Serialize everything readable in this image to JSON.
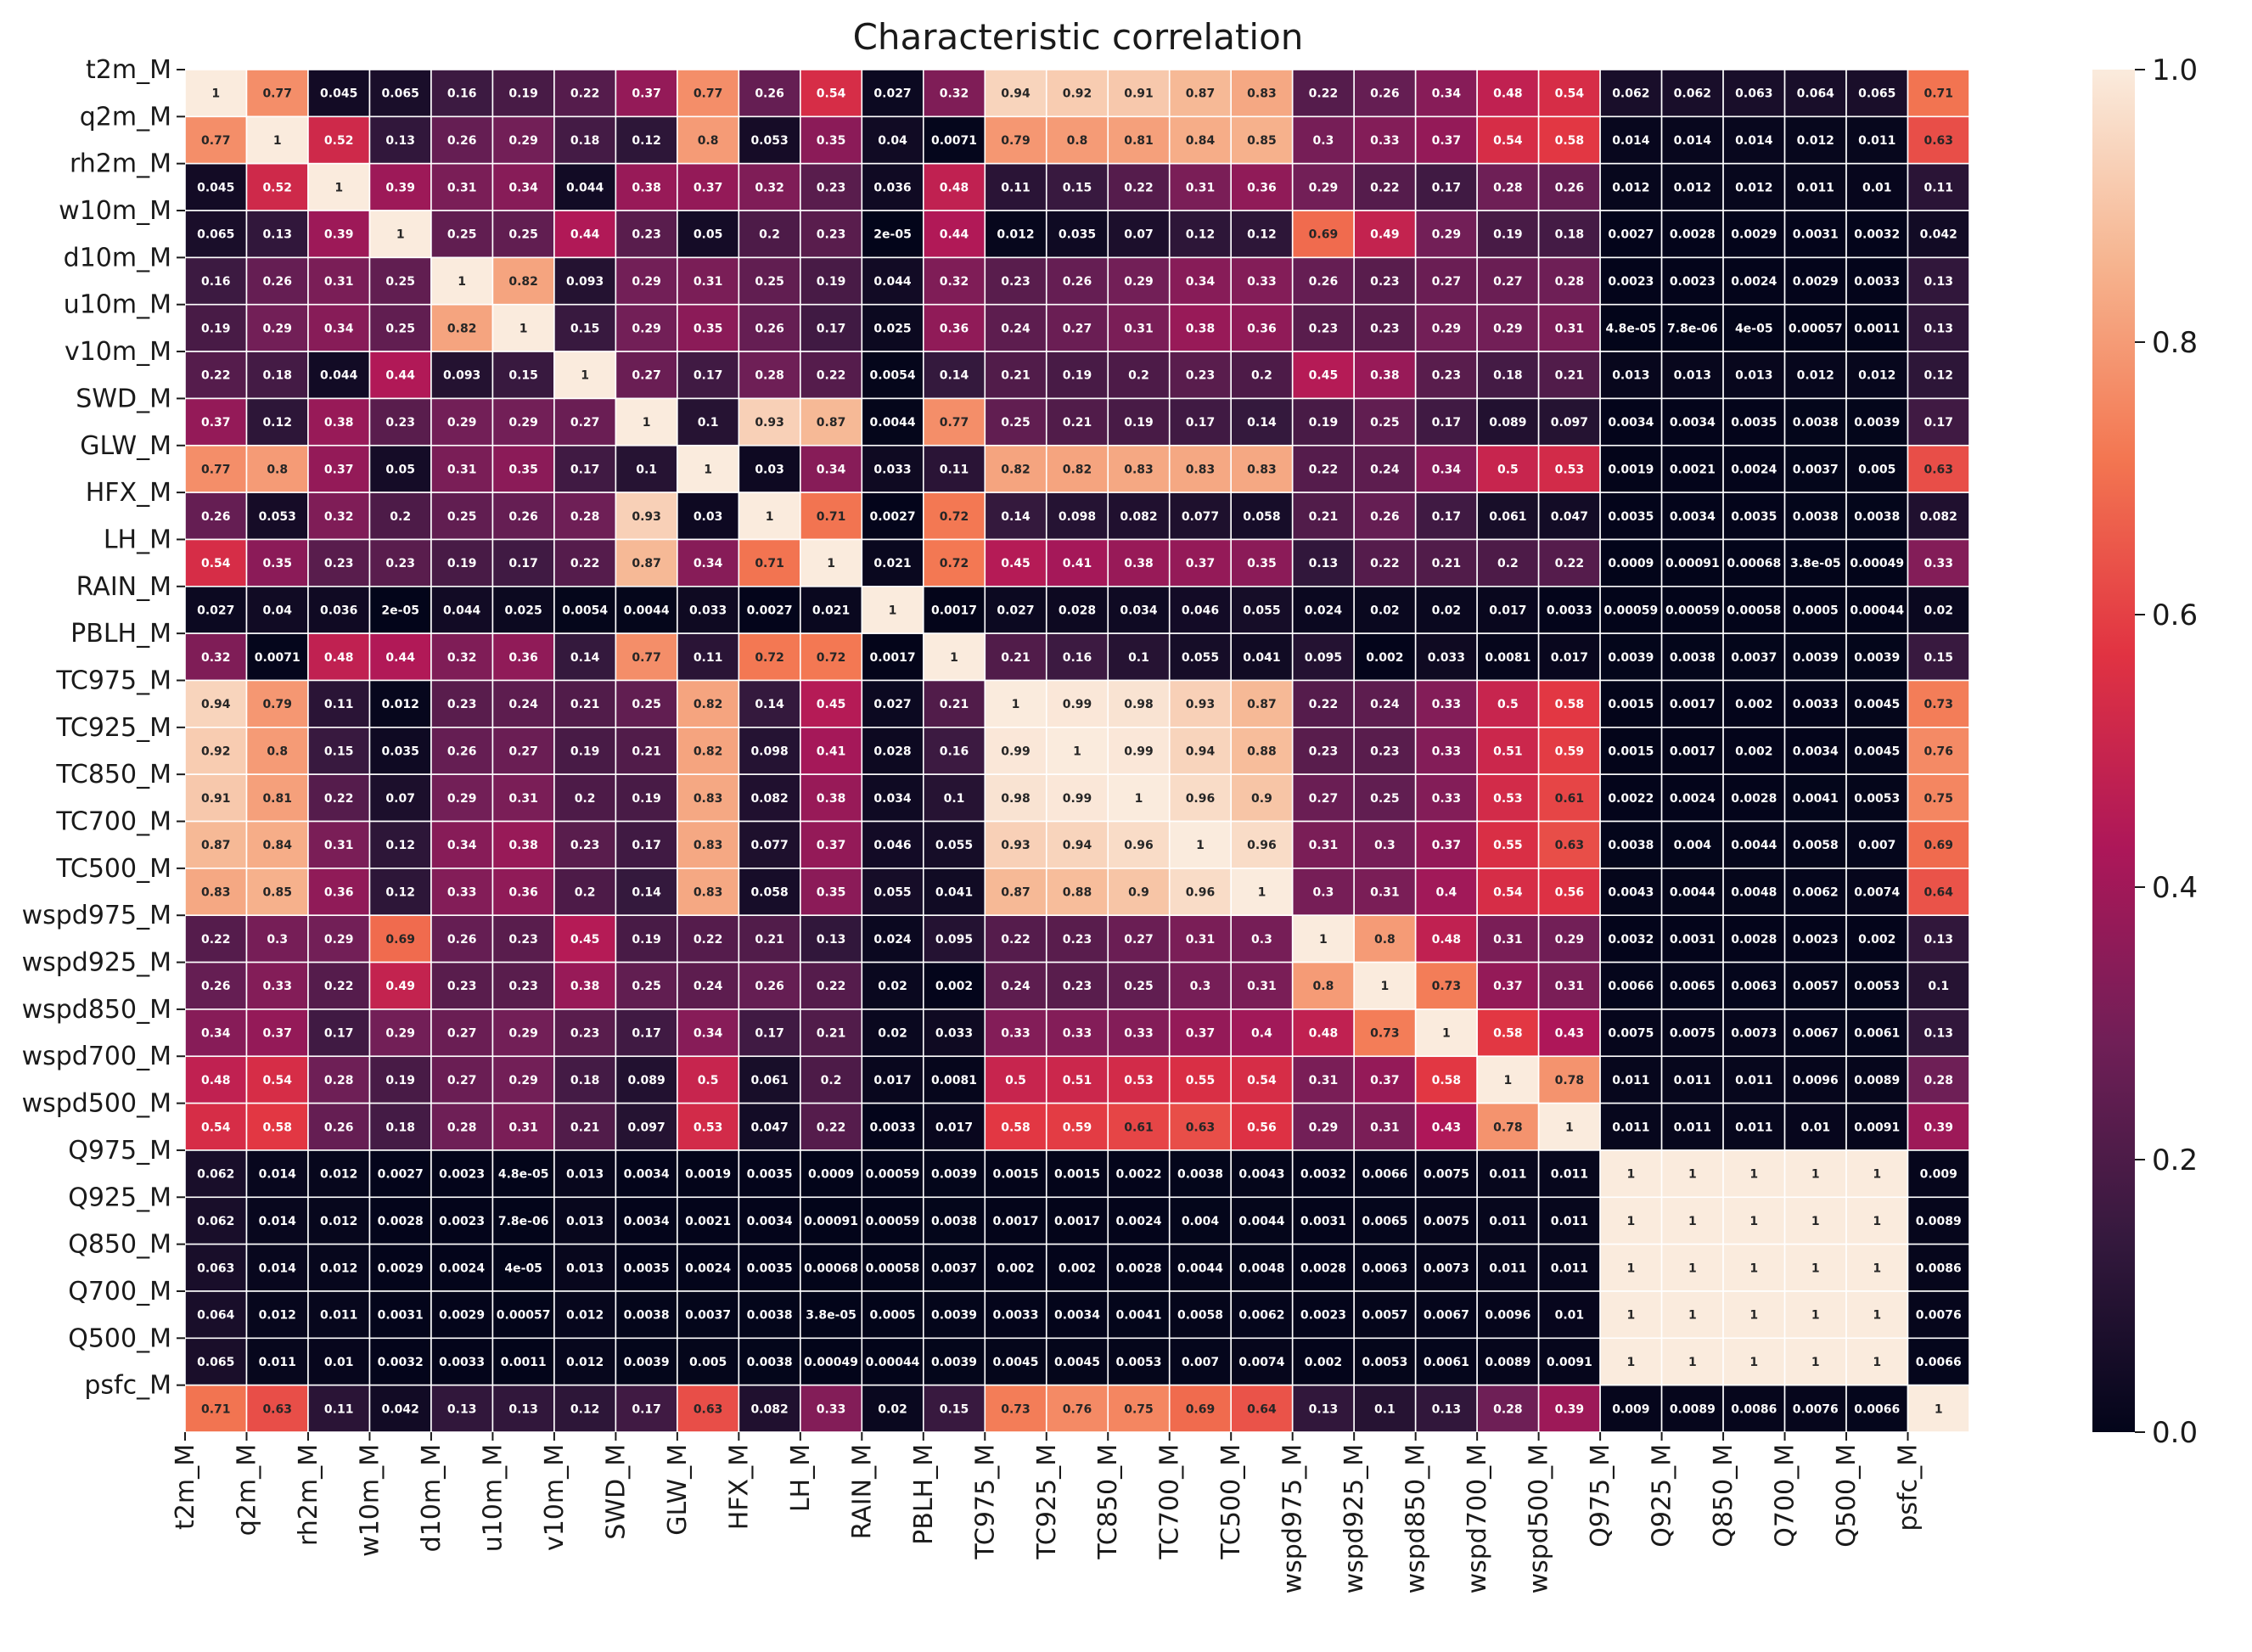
{
  "chart_data": {
    "type": "heatmap",
    "title": "Characteristic correlation",
    "labels": [
      "t2m_M",
      "q2m_M",
      "rh2m_M",
      "w10m_M",
      "d10m_M",
      "u10m_M",
      "v10m_M",
      "SWD_M",
      "GLW_M",
      "HFX_M",
      "LH_M",
      "RAIN_M",
      "PBLH_M",
      "TC975_M",
      "TC925_M",
      "TC850_M",
      "TC700_M",
      "TC500_M",
      "wspd975_M",
      "wspd925_M",
      "wspd850_M",
      "wspd700_M",
      "wspd500_M",
      "Q975_M",
      "Q925_M",
      "Q850_M",
      "Q700_M",
      "Q500_M",
      "psfc_M"
    ],
    "cell_text": [
      [
        "1",
        "0.77",
        "0.045",
        "0.065",
        "0.16",
        "0.19",
        "0.22",
        "0.37",
        "0.77",
        "0.26",
        "0.54",
        "0.027",
        "0.32",
        "0.94",
        "0.92",
        "0.91",
        "0.87",
        "0.83",
        "0.22",
        "0.26",
        "0.34",
        "0.48",
        "0.54",
        "0.062",
        "0.062",
        "0.063",
        "0.064",
        "0.065",
        "0.71"
      ],
      [
        "0.77",
        "1",
        "0.52",
        "0.13",
        "0.26",
        "0.29",
        "0.18",
        "0.12",
        "0.8",
        "0.053",
        "0.35",
        "0.04",
        "0.0071",
        "0.79",
        "0.8",
        "0.81",
        "0.84",
        "0.85",
        "0.3",
        "0.33",
        "0.37",
        "0.54",
        "0.58",
        "0.014",
        "0.014",
        "0.014",
        "0.012",
        "0.011",
        "0.63"
      ],
      [
        "0.045",
        "0.52",
        "1",
        "0.39",
        "0.31",
        "0.34",
        "0.044",
        "0.38",
        "0.37",
        "0.32",
        "0.23",
        "0.036",
        "0.48",
        "0.11",
        "0.15",
        "0.22",
        "0.31",
        "0.36",
        "0.29",
        "0.22",
        "0.17",
        "0.28",
        "0.26",
        "0.012",
        "0.012",
        "0.012",
        "0.011",
        "0.01",
        "0.11"
      ],
      [
        "0.065",
        "0.13",
        "0.39",
        "1",
        "0.25",
        "0.25",
        "0.44",
        "0.23",
        "0.05",
        "0.2",
        "0.23",
        "2e-05",
        "0.44",
        "0.012",
        "0.035",
        "0.07",
        "0.12",
        "0.12",
        "0.69",
        "0.49",
        "0.29",
        "0.19",
        "0.18",
        "0.0027",
        "0.0028",
        "0.0029",
        "0.0031",
        "0.0032",
        "0.042"
      ],
      [
        "0.16",
        "0.26",
        "0.31",
        "0.25",
        "1",
        "0.82",
        "0.093",
        "0.29",
        "0.31",
        "0.25",
        "0.19",
        "0.044",
        "0.32",
        "0.23",
        "0.26",
        "0.29",
        "0.34",
        "0.33",
        "0.26",
        "0.23",
        "0.27",
        "0.27",
        "0.28",
        "0.0023",
        "0.0023",
        "0.0024",
        "0.0029",
        "0.0033",
        "0.13"
      ],
      [
        "0.19",
        "0.29",
        "0.34",
        "0.25",
        "0.82",
        "1",
        "0.15",
        "0.29",
        "0.35",
        "0.26",
        "0.17",
        "0.025",
        "0.36",
        "0.24",
        "0.27",
        "0.31",
        "0.38",
        "0.36",
        "0.23",
        "0.23",
        "0.29",
        "0.29",
        "0.31",
        "4.8e-05",
        "7.8e-06",
        "4e-05",
        "0.00057",
        "0.0011",
        "0.13"
      ],
      [
        "0.22",
        "0.18",
        "0.044",
        "0.44",
        "0.093",
        "0.15",
        "1",
        "0.27",
        "0.17",
        "0.28",
        "0.22",
        "0.0054",
        "0.14",
        "0.21",
        "0.19",
        "0.2",
        "0.23",
        "0.2",
        "0.45",
        "0.38",
        "0.23",
        "0.18",
        "0.21",
        "0.013",
        "0.013",
        "0.013",
        "0.012",
        "0.012",
        "0.12"
      ],
      [
        "0.37",
        "0.12",
        "0.38",
        "0.23",
        "0.29",
        "0.29",
        "0.27",
        "1",
        "0.1",
        "0.93",
        "0.87",
        "0.0044",
        "0.77",
        "0.25",
        "0.21",
        "0.19",
        "0.17",
        "0.14",
        "0.19",
        "0.25",
        "0.17",
        "0.089",
        "0.097",
        "0.0034",
        "0.0034",
        "0.0035",
        "0.0038",
        "0.0039",
        "0.17"
      ],
      [
        "0.77",
        "0.8",
        "0.37",
        "0.05",
        "0.31",
        "0.35",
        "0.17",
        "0.1",
        "1",
        "0.03",
        "0.34",
        "0.033",
        "0.11",
        "0.82",
        "0.82",
        "0.83",
        "0.83",
        "0.83",
        "0.22",
        "0.24",
        "0.34",
        "0.5",
        "0.53",
        "0.0019",
        "0.0021",
        "0.0024",
        "0.0037",
        "0.005",
        "0.63"
      ],
      [
        "0.26",
        "0.053",
        "0.32",
        "0.2",
        "0.25",
        "0.26",
        "0.28",
        "0.93",
        "0.03",
        "1",
        "0.71",
        "0.0027",
        "0.72",
        "0.14",
        "0.098",
        "0.082",
        "0.077",
        "0.058",
        "0.21",
        "0.26",
        "0.17",
        "0.061",
        "0.047",
        "0.0035",
        "0.0034",
        "0.0035",
        "0.0038",
        "0.0038",
        "0.082"
      ],
      [
        "0.54",
        "0.35",
        "0.23",
        "0.23",
        "0.19",
        "0.17",
        "0.22",
        "0.87",
        "0.34",
        "0.71",
        "1",
        "0.021",
        "0.72",
        "0.45",
        "0.41",
        "0.38",
        "0.37",
        "0.35",
        "0.13",
        "0.22",
        "0.21",
        "0.2",
        "0.22",
        "0.0009",
        "0.00091",
        "0.00068",
        "3.8e-05",
        "0.00049",
        "0.33"
      ],
      [
        "0.027",
        "0.04",
        "0.036",
        "2e-05",
        "0.044",
        "0.025",
        "0.0054",
        "0.0044",
        "0.033",
        "0.0027",
        "0.021",
        "1",
        "0.0017",
        "0.027",
        "0.028",
        "0.034",
        "0.046",
        "0.055",
        "0.024",
        "0.02",
        "0.02",
        "0.017",
        "0.0033",
        "0.00059",
        "0.00059",
        "0.00058",
        "0.0005",
        "0.00044",
        "0.02"
      ],
      [
        "0.32",
        "0.0071",
        "0.48",
        "0.44",
        "0.32",
        "0.36",
        "0.14",
        "0.77",
        "0.11",
        "0.72",
        "0.72",
        "0.0017",
        "1",
        "0.21",
        "0.16",
        "0.1",
        "0.055",
        "0.041",
        "0.095",
        "0.002",
        "0.033",
        "0.0081",
        "0.017",
        "0.0039",
        "0.0038",
        "0.0037",
        "0.0039",
        "0.0039",
        "0.15"
      ],
      [
        "0.94",
        "0.79",
        "0.11",
        "0.012",
        "0.23",
        "0.24",
        "0.21",
        "0.25",
        "0.82",
        "0.14",
        "0.45",
        "0.027",
        "0.21",
        "1",
        "0.99",
        "0.98",
        "0.93",
        "0.87",
        "0.22",
        "0.24",
        "0.33",
        "0.5",
        "0.58",
        "0.0015",
        "0.0017",
        "0.002",
        "0.0033",
        "0.0045",
        "0.73"
      ],
      [
        "0.92",
        "0.8",
        "0.15",
        "0.035",
        "0.26",
        "0.27",
        "0.19",
        "0.21",
        "0.82",
        "0.098",
        "0.41",
        "0.028",
        "0.16",
        "0.99",
        "1",
        "0.99",
        "0.94",
        "0.88",
        "0.23",
        "0.23",
        "0.33",
        "0.51",
        "0.59",
        "0.0015",
        "0.0017",
        "0.002",
        "0.0034",
        "0.0045",
        "0.76"
      ],
      [
        "0.91",
        "0.81",
        "0.22",
        "0.07",
        "0.29",
        "0.31",
        "0.2",
        "0.19",
        "0.83",
        "0.082",
        "0.38",
        "0.034",
        "0.1",
        "0.98",
        "0.99",
        "1",
        "0.96",
        "0.9",
        "0.27",
        "0.25",
        "0.33",
        "0.53",
        "0.61",
        "0.0022",
        "0.0024",
        "0.0028",
        "0.0041",
        "0.0053",
        "0.75"
      ],
      [
        "0.87",
        "0.84",
        "0.31",
        "0.12",
        "0.34",
        "0.38",
        "0.23",
        "0.17",
        "0.83",
        "0.077",
        "0.37",
        "0.046",
        "0.055",
        "0.93",
        "0.94",
        "0.96",
        "1",
        "0.96",
        "0.31",
        "0.3",
        "0.37",
        "0.55",
        "0.63",
        "0.0038",
        "0.004",
        "0.0044",
        "0.0058",
        "0.007",
        "0.69"
      ],
      [
        "0.83",
        "0.85",
        "0.36",
        "0.12",
        "0.33",
        "0.36",
        "0.2",
        "0.14",
        "0.83",
        "0.058",
        "0.35",
        "0.055",
        "0.041",
        "0.87",
        "0.88",
        "0.9",
        "0.96",
        "1",
        "0.3",
        "0.31",
        "0.4",
        "0.54",
        "0.56",
        "0.0043",
        "0.0044",
        "0.0048",
        "0.0062",
        "0.0074",
        "0.64"
      ],
      [
        "0.22",
        "0.3",
        "0.29",
        "0.69",
        "0.26",
        "0.23",
        "0.45",
        "0.19",
        "0.22",
        "0.21",
        "0.13",
        "0.024",
        "0.095",
        "0.22",
        "0.23",
        "0.27",
        "0.31",
        "0.3",
        "1",
        "0.8",
        "0.48",
        "0.31",
        "0.29",
        "0.0032",
        "0.0031",
        "0.0028",
        "0.0023",
        "0.002",
        "0.13"
      ],
      [
        "0.26",
        "0.33",
        "0.22",
        "0.49",
        "0.23",
        "0.23",
        "0.38",
        "0.25",
        "0.24",
        "0.26",
        "0.22",
        "0.02",
        "0.002",
        "0.24",
        "0.23",
        "0.25",
        "0.3",
        "0.31",
        "0.8",
        "1",
        "0.73",
        "0.37",
        "0.31",
        "0.0066",
        "0.0065",
        "0.0063",
        "0.0057",
        "0.0053",
        "0.1"
      ],
      [
        "0.34",
        "0.37",
        "0.17",
        "0.29",
        "0.27",
        "0.29",
        "0.23",
        "0.17",
        "0.34",
        "0.17",
        "0.21",
        "0.02",
        "0.033",
        "0.33",
        "0.33",
        "0.33",
        "0.37",
        "0.4",
        "0.48",
        "0.73",
        "1",
        "0.58",
        "0.43",
        "0.0075",
        "0.0075",
        "0.0073",
        "0.0067",
        "0.0061",
        "0.13"
      ],
      [
        "0.48",
        "0.54",
        "0.28",
        "0.19",
        "0.27",
        "0.29",
        "0.18",
        "0.089",
        "0.5",
        "0.061",
        "0.2",
        "0.017",
        "0.0081",
        "0.5",
        "0.51",
        "0.53",
        "0.55",
        "0.54",
        "0.31",
        "0.37",
        "0.58",
        "1",
        "0.78",
        "0.011",
        "0.011",
        "0.011",
        "0.0096",
        "0.0089",
        "0.28"
      ],
      [
        "0.54",
        "0.58",
        "0.26",
        "0.18",
        "0.28",
        "0.31",
        "0.21",
        "0.097",
        "0.53",
        "0.047",
        "0.22",
        "0.0033",
        "0.017",
        "0.58",
        "0.59",
        "0.61",
        "0.63",
        "0.56",
        "0.29",
        "0.31",
        "0.43",
        "0.78",
        "1",
        "0.011",
        "0.011",
        "0.011",
        "0.01",
        "0.0091",
        "0.39"
      ],
      [
        "0.062",
        "0.014",
        "0.012",
        "0.0027",
        "0.0023",
        "4.8e-05",
        "0.013",
        "0.0034",
        "0.0019",
        "0.0035",
        "0.0009",
        "0.00059",
        "0.0039",
        "0.0015",
        "0.0015",
        "0.0022",
        "0.0038",
        "0.0043",
        "0.0032",
        "0.0066",
        "0.0075",
        "0.011",
        "0.011",
        "1",
        "1",
        "1",
        "1",
        "1",
        "0.009"
      ],
      [
        "0.062",
        "0.014",
        "0.012",
        "0.0028",
        "0.0023",
        "7.8e-06",
        "0.013",
        "0.0034",
        "0.0021",
        "0.0034",
        "0.00091",
        "0.00059",
        "0.0038",
        "0.0017",
        "0.0017",
        "0.0024",
        "0.004",
        "0.0044",
        "0.0031",
        "0.0065",
        "0.0075",
        "0.011",
        "0.011",
        "1",
        "1",
        "1",
        "1",
        "1",
        "0.0089"
      ],
      [
        "0.063",
        "0.014",
        "0.012",
        "0.0029",
        "0.0024",
        "4e-05",
        "0.013",
        "0.0035",
        "0.0024",
        "0.0035",
        "0.00068",
        "0.00058",
        "0.0037",
        "0.002",
        "0.002",
        "0.0028",
        "0.0044",
        "0.0048",
        "0.0028",
        "0.0063",
        "0.0073",
        "0.011",
        "0.011",
        "1",
        "1",
        "1",
        "1",
        "1",
        "0.0086"
      ],
      [
        "0.064",
        "0.012",
        "0.011",
        "0.0031",
        "0.0029",
        "0.00057",
        "0.012",
        "0.0038",
        "0.0037",
        "0.0038",
        "3.8e-05",
        "0.0005",
        "0.0039",
        "0.0033",
        "0.0034",
        "0.0041",
        "0.0058",
        "0.0062",
        "0.0023",
        "0.0057",
        "0.0067",
        "0.0096",
        "0.01",
        "1",
        "1",
        "1",
        "1",
        "1",
        "0.0076"
      ],
      [
        "0.065",
        "0.011",
        "0.01",
        "0.0032",
        "0.0033",
        "0.0011",
        "0.012",
        "0.0039",
        "0.005",
        "0.0038",
        "0.00049",
        "0.00044",
        "0.0039",
        "0.0045",
        "0.0045",
        "0.0053",
        "0.007",
        "0.0074",
        "0.002",
        "0.0053",
        "0.0061",
        "0.0089",
        "0.0091",
        "1",
        "1",
        "1",
        "1",
        "1",
        "0.0066"
      ],
      [
        "0.71",
        "0.63",
        "0.11",
        "0.042",
        "0.13",
        "0.13",
        "0.12",
        "0.17",
        "0.63",
        "0.082",
        "0.33",
        "0.02",
        "0.15",
        "0.73",
        "0.76",
        "0.75",
        "0.69",
        "0.64",
        "0.13",
        "0.1",
        "0.13",
        "0.28",
        "0.39",
        "0.009",
        "0.0089",
        "0.0086",
        "0.0076",
        "0.0066",
        "1"
      ]
    ],
    "colorbar": {
      "range": [
        0.0,
        1.0
      ],
      "ticks": [
        0.0,
        0.2,
        0.4,
        0.6,
        0.8,
        1.0
      ],
      "tick_labels": [
        "0.0",
        "0.2",
        "0.4",
        "0.6",
        "0.8",
        "1.0"
      ]
    },
    "colormap": "rocket",
    "colormap_stops": [
      "#03051a",
      "#35193e",
      "#701f57",
      "#ad1759",
      "#e13342",
      "#f37651",
      "#f6b48f",
      "#faebdd"
    ],
    "grid_color": "#ffffff",
    "text_color_dark": "#262626",
    "text_color_light": "#ffffff"
  }
}
